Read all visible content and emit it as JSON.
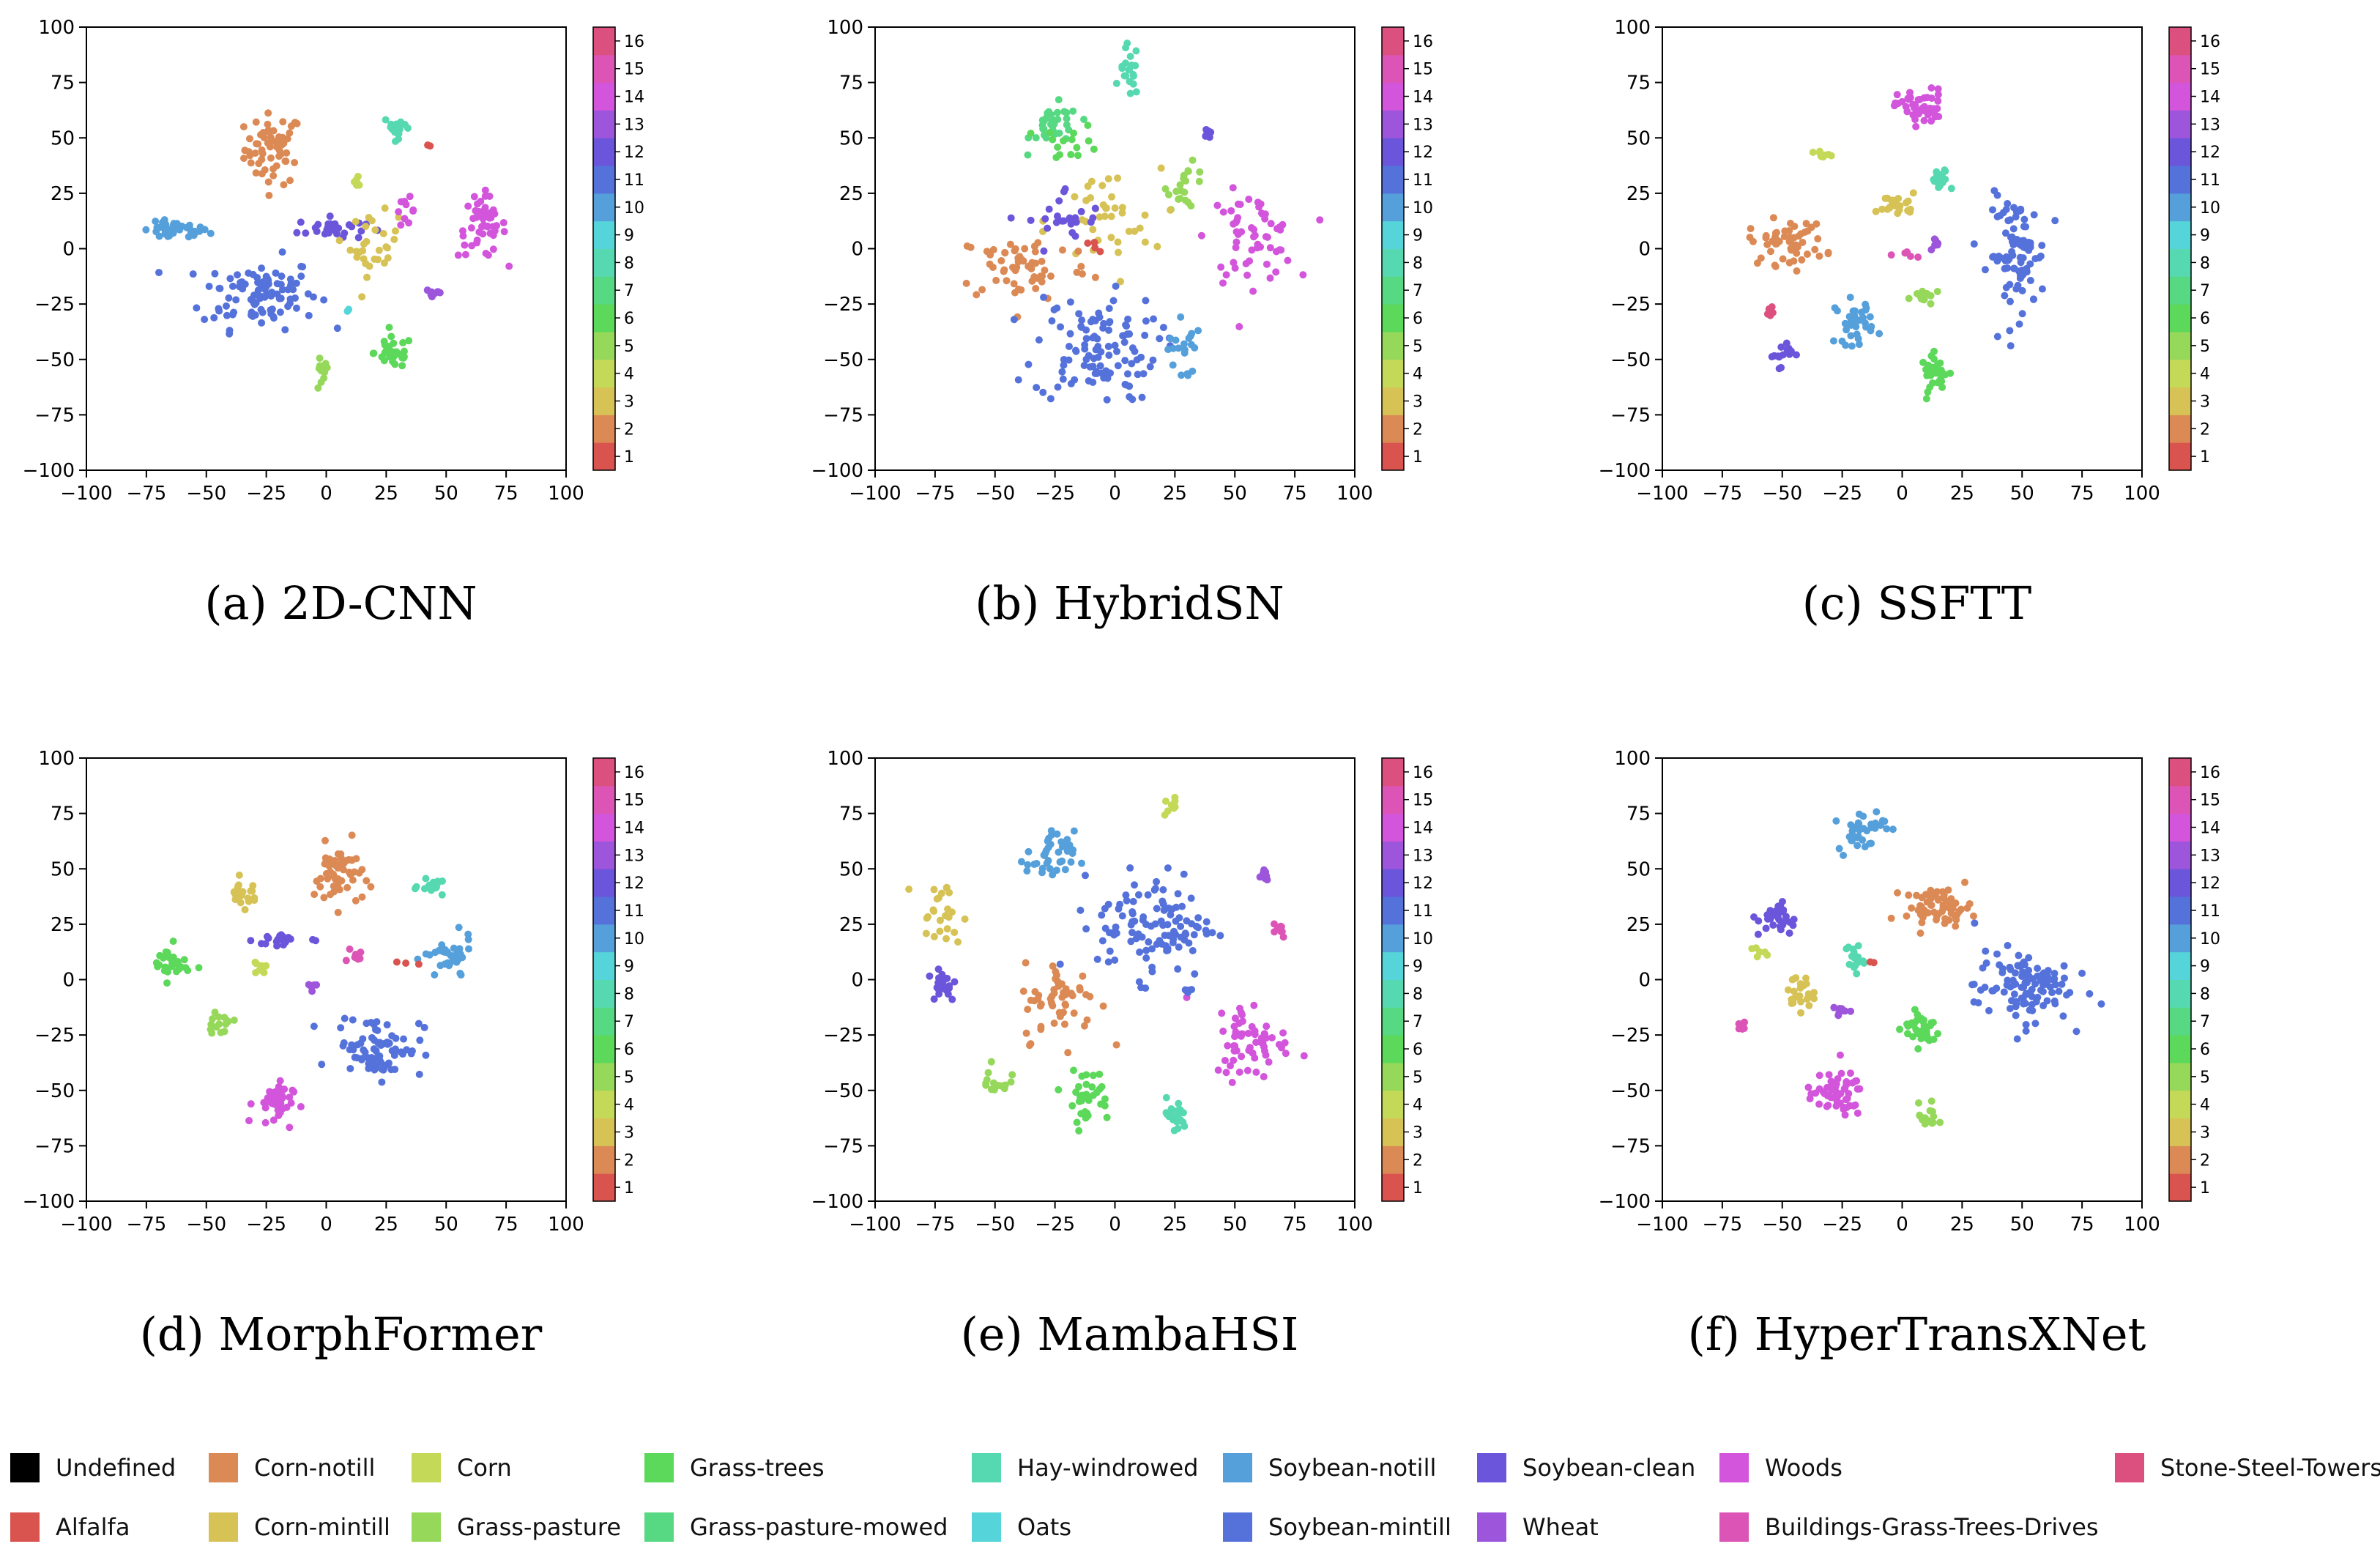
{
  "classes": [
    {
      "id": 0,
      "name": "Undefined",
      "color": "#000000"
    },
    {
      "id": 1,
      "name": "Alfalfa",
      "color": "#d9534f"
    },
    {
      "id": 2,
      "name": "Corn-notill",
      "color": "#dc8a55"
    },
    {
      "id": 3,
      "name": "Corn-mintill",
      "color": "#d6c255"
    },
    {
      "id": 4,
      "name": "Corn",
      "color": "#c4d957"
    },
    {
      "id": 5,
      "name": "Grass-pasture",
      "color": "#96d85a"
    },
    {
      "id": 6,
      "name": "Grass-trees",
      "color": "#5cd85a"
    },
    {
      "id": 7,
      "name": "Grass-pasture-mowed",
      "color": "#57d883"
    },
    {
      "id": 8,
      "name": "Hay-windrowed",
      "color": "#56d9b0"
    },
    {
      "id": 9,
      "name": "Oats",
      "color": "#55d5d9"
    },
    {
      "id": 10,
      "name": "Soybean-notill",
      "color": "#55a0db"
    },
    {
      "id": 11,
      "name": "Soybean-mintill",
      "color": "#5572db"
    },
    {
      "id": 12,
      "name": "Soybean-clean",
      "color": "#6b55db"
    },
    {
      "id": 13,
      "name": "Wheat",
      "color": "#9c55db"
    },
    {
      "id": 14,
      "name": "Woods",
      "color": "#d255db"
    },
    {
      "id": 15,
      "name": "Buildings-Grass-Trees-Drives",
      "color": "#dc55b6"
    },
    {
      "id": 16,
      "name": "Stone-Steel-Towers",
      "color": "#dc5080"
    }
  ],
  "colorbar": {
    "ticks": [
      "1",
      "2",
      "3",
      "4",
      "5",
      "6",
      "7",
      "8",
      "9",
      "10",
      "11",
      "12",
      "13",
      "14",
      "15",
      "16"
    ],
    "colors": [
      "#d9534f",
      "#dc8a55",
      "#d6c255",
      "#c4d957",
      "#96d85a",
      "#5cd85a",
      "#57d883",
      "#56d9b0",
      "#55d5d9",
      "#55a0db",
      "#5572db",
      "#6b55db",
      "#9c55db",
      "#d255db",
      "#dc55b6",
      "#dc5080"
    ]
  },
  "axes": {
    "x_ticks": [
      "−100",
      "−75",
      "−50",
      "−25",
      "0",
      "25",
      "50",
      "75",
      "100"
    ],
    "y_ticks": [
      "100",
      "75",
      "50",
      "25",
      "0",
      "−25",
      "−50",
      "−75",
      "−100"
    ],
    "xlim": [
      -100,
      100
    ],
    "ylim": [
      -100,
      100
    ]
  },
  "chart_data": [
    {
      "type": "scatter",
      "title": "(a)  2D-CNN",
      "xlim": [
        -100,
        100
      ],
      "ylim": [
        -100,
        100
      ],
      "clusters": [
        {
          "class": 2,
          "x": -22,
          "y": 45,
          "sx": 6,
          "sy": 8,
          "n": 60
        },
        {
          "class": 10,
          "x": -63,
          "y": 8,
          "sx": 7,
          "sy": 2,
          "n": 40
        },
        {
          "class": 11,
          "x": -28,
          "y": -20,
          "sx": 12,
          "sy": 8,
          "n": 100
        },
        {
          "class": 12,
          "x": 2,
          "y": 9,
          "sx": 7,
          "sy": 2.5,
          "n": 30
        },
        {
          "class": 4,
          "x": 13,
          "y": 30,
          "sx": 1.5,
          "sy": 1.5,
          "n": 6
        },
        {
          "class": 3,
          "x": 20,
          "y": 2,
          "sx": 5,
          "sy": 7,
          "n": 30
        },
        {
          "class": 8,
          "x": 30,
          "y": 55,
          "sx": 3,
          "sy": 2.5,
          "n": 20
        },
        {
          "class": 14,
          "x": 33,
          "y": 17,
          "sx": 2,
          "sy": 3,
          "n": 10
        },
        {
          "class": 14,
          "x": 65,
          "y": 10,
          "sx": 5,
          "sy": 7,
          "n": 50
        },
        {
          "class": 13,
          "x": 45,
          "y": -20,
          "sx": 2,
          "sy": 1.5,
          "n": 8
        },
        {
          "class": 6,
          "x": 28,
          "y": -47,
          "sx": 4,
          "sy": 3.5,
          "n": 35
        },
        {
          "class": 5,
          "x": -2,
          "y": -57,
          "sx": 1.5,
          "sy": 4,
          "n": 12
        },
        {
          "class": 9,
          "x": 9,
          "y": -28,
          "sx": 0.5,
          "sy": 0.5,
          "n": 2
        },
        {
          "class": 1,
          "x": 43,
          "y": 46,
          "sx": 0.5,
          "sy": 0.5,
          "n": 2
        }
      ]
    },
    {
      "type": "scatter",
      "title": "(b)  HybridSN",
      "xlim": [
        -100,
        100
      ],
      "ylim": [
        -100,
        100
      ],
      "clusters": [
        {
          "class": 8,
          "x": 6,
          "y": 80,
          "sx": 2,
          "sy": 6,
          "n": 20
        },
        {
          "class": 7,
          "x": -25,
          "y": 55,
          "sx": 5,
          "sy": 5,
          "n": 35
        },
        {
          "class": 6,
          "x": -18,
          "y": 48,
          "sx": 6,
          "sy": 4,
          "n": 15
        },
        {
          "class": 12,
          "x": 38,
          "y": 53,
          "sx": 1.5,
          "sy": 1.5,
          "n": 6
        },
        {
          "class": 5,
          "x": 30,
          "y": 28,
          "sx": 4,
          "sy": 5,
          "n": 20
        },
        {
          "class": 14,
          "x": 57,
          "y": 5,
          "sx": 9,
          "sy": 10,
          "n": 60
        },
        {
          "class": 3,
          "x": -5,
          "y": 12,
          "sx": 12,
          "sy": 12,
          "n": 40
        },
        {
          "class": 2,
          "x": -38,
          "y": -8,
          "sx": 14,
          "sy": 8,
          "n": 60
        },
        {
          "class": 12,
          "x": -20,
          "y": 12,
          "sx": 8,
          "sy": 8,
          "n": 25
        },
        {
          "class": 11,
          "x": -8,
          "y": -45,
          "sx": 13,
          "sy": 12,
          "n": 110
        },
        {
          "class": 10,
          "x": 28,
          "y": -45,
          "sx": 3,
          "sy": 8,
          "n": 20
        },
        {
          "class": 1,
          "x": -10,
          "y": 0,
          "sx": 2,
          "sy": 2,
          "n": 4
        }
      ]
    },
    {
      "type": "scatter",
      "title": "(c)  SSFTT",
      "xlim": [
        -100,
        100
      ],
      "ylim": [
        -100,
        100
      ],
      "clusters": [
        {
          "class": 14,
          "x": 8,
          "y": 64,
          "sx": 5,
          "sy": 4,
          "n": 50
        },
        {
          "class": 4,
          "x": -33,
          "y": 42,
          "sx": 2,
          "sy": 1,
          "n": 8
        },
        {
          "class": 8,
          "x": 16,
          "y": 30,
          "sx": 2,
          "sy": 3,
          "n": 20
        },
        {
          "class": 3,
          "x": -2,
          "y": 20,
          "sx": 4,
          "sy": 2.5,
          "n": 25
        },
        {
          "class": 2,
          "x": -48,
          "y": 3,
          "sx": 8,
          "sy": 5,
          "n": 55
        },
        {
          "class": 11,
          "x": 48,
          "y": -3,
          "sx": 6,
          "sy": 13,
          "n": 90
        },
        {
          "class": 13,
          "x": 15,
          "y": 3,
          "sx": 1,
          "sy": 2,
          "n": 6
        },
        {
          "class": 15,
          "x": 3,
          "y": -3,
          "sx": 2,
          "sy": 1,
          "n": 6
        },
        {
          "class": 10,
          "x": -20,
          "y": -33,
          "sx": 4,
          "sy": 5,
          "n": 35
        },
        {
          "class": 6,
          "x": 14,
          "y": -56,
          "sx": 3,
          "sy": 4,
          "n": 30
        },
        {
          "class": 5,
          "x": 10,
          "y": -22,
          "sx": 3,
          "sy": 2,
          "n": 15
        },
        {
          "class": 12,
          "x": -51,
          "y": -47,
          "sx": 2.5,
          "sy": 3,
          "n": 15
        },
        {
          "class": 16,
          "x": -55,
          "y": -28,
          "sx": 1,
          "sy": 1.5,
          "n": 5
        }
      ]
    },
    {
      "type": "scatter",
      "title": "(d)  MorphFormer",
      "xlim": [
        -100,
        100
      ],
      "ylim": [
        -100,
        100
      ],
      "clusters": [
        {
          "class": 2,
          "x": 5,
          "y": 47,
          "sx": 5,
          "sy": 7,
          "n": 55
        },
        {
          "class": 3,
          "x": -35,
          "y": 39,
          "sx": 3,
          "sy": 3,
          "n": 25
        },
        {
          "class": 8,
          "x": 45,
          "y": 42,
          "sx": 3,
          "sy": 1.5,
          "n": 18
        },
        {
          "class": 10,
          "x": 51,
          "y": 9,
          "sx": 5,
          "sy": 5,
          "n": 35
        },
        {
          "class": 6,
          "x": -65,
          "y": 7,
          "sx": 4,
          "sy": 4,
          "n": 30
        },
        {
          "class": 12,
          "x": -18,
          "y": 18,
          "sx": 6,
          "sy": 2,
          "n": 20
        },
        {
          "class": 4,
          "x": -28,
          "y": 5,
          "sx": 1.5,
          "sy": 1.5,
          "n": 8
        },
        {
          "class": 15,
          "x": 12,
          "y": 10,
          "sx": 1.5,
          "sy": 1.5,
          "n": 8
        },
        {
          "class": 13,
          "x": -6,
          "y": -3,
          "sx": 1,
          "sy": 1,
          "n": 5
        },
        {
          "class": 5,
          "x": -45,
          "y": -20,
          "sx": 3,
          "sy": 2,
          "n": 15
        },
        {
          "class": 11,
          "x": 22,
          "y": -30,
          "sx": 9,
          "sy": 7,
          "n": 80
        },
        {
          "class": 14,
          "x": -22,
          "y": -56,
          "sx": 4,
          "sy": 5,
          "n": 40
        },
        {
          "class": 1,
          "x": 33,
          "y": 8,
          "sx": 2,
          "sy": 1,
          "n": 3
        }
      ]
    },
    {
      "type": "scatter",
      "title": "(e)  MambaHSI",
      "xlim": [
        -100,
        100
      ],
      "ylim": [
        -100,
        100
      ],
      "clusters": [
        {
          "class": 4,
          "x": 23,
          "y": 78,
          "sx": 1.5,
          "sy": 2,
          "n": 8
        },
        {
          "class": 10,
          "x": -27,
          "y": 55,
          "sx": 5,
          "sy": 6,
          "n": 40
        },
        {
          "class": 3,
          "x": -73,
          "y": 28,
          "sx": 5,
          "sy": 8,
          "n": 25
        },
        {
          "class": 11,
          "x": 17,
          "y": 25,
          "sx": 12,
          "sy": 12,
          "n": 110
        },
        {
          "class": 13,
          "x": 62,
          "y": 47,
          "sx": 1.5,
          "sy": 2,
          "n": 8
        },
        {
          "class": 15,
          "x": 68,
          "y": 23,
          "sx": 2,
          "sy": 2,
          "n": 10
        },
        {
          "class": 12,
          "x": -72,
          "y": -2,
          "sx": 3,
          "sy": 4,
          "n": 20
        },
        {
          "class": 2,
          "x": -22,
          "y": -10,
          "sx": 8,
          "sy": 9,
          "n": 55
        },
        {
          "class": 14,
          "x": 57,
          "y": -27,
          "sx": 8,
          "sy": 9,
          "n": 60
        },
        {
          "class": 5,
          "x": -50,
          "y": -47,
          "sx": 3,
          "sy": 4,
          "n": 15
        },
        {
          "class": 6,
          "x": -12,
          "y": -52,
          "sx": 5,
          "sy": 6,
          "n": 35
        },
        {
          "class": 8,
          "x": 25,
          "y": -62,
          "sx": 2.5,
          "sy": 4,
          "n": 20
        },
        {
          "class": 11,
          "x": 30,
          "y": -5,
          "sx": 1.5,
          "sy": 1,
          "n": 5
        }
      ]
    },
    {
      "type": "scatter",
      "title": "(f)  HyperTransXNet",
      "xlim": [
        -100,
        100
      ],
      "ylim": [
        -100,
        100
      ],
      "clusters": [
        {
          "class": 10,
          "x": -17,
          "y": 68,
          "sx": 5,
          "sy": 5,
          "n": 35
        },
        {
          "class": 2,
          "x": 15,
          "y": 33,
          "sx": 7,
          "sy": 4,
          "n": 60
        },
        {
          "class": 12,
          "x": -52,
          "y": 27,
          "sx": 4,
          "sy": 4,
          "n": 30
        },
        {
          "class": 8,
          "x": -20,
          "y": 10,
          "sx": 2,
          "sy": 4,
          "n": 18
        },
        {
          "class": 4,
          "x": -60,
          "y": 12,
          "sx": 1.5,
          "sy": 1.5,
          "n": 6
        },
        {
          "class": 3,
          "x": -43,
          "y": -6,
          "sx": 3,
          "sy": 4,
          "n": 25
        },
        {
          "class": 11,
          "x": 50,
          "y": -3,
          "sx": 10,
          "sy": 8,
          "n": 110
        },
        {
          "class": 6,
          "x": 8,
          "y": -22,
          "sx": 4,
          "sy": 4,
          "n": 35
        },
        {
          "class": 13,
          "x": -25,
          "y": -14,
          "sx": 2,
          "sy": 1,
          "n": 8
        },
        {
          "class": 15,
          "x": -67,
          "y": -21,
          "sx": 1.5,
          "sy": 1.5,
          "n": 8
        },
        {
          "class": 14,
          "x": -28,
          "y": -52,
          "sx": 6,
          "sy": 5,
          "n": 55
        },
        {
          "class": 5,
          "x": 11,
          "y": -62,
          "sx": 2,
          "sy": 3,
          "n": 15
        },
        {
          "class": 1,
          "x": -13,
          "y": 8,
          "sx": 1,
          "sy": 1,
          "n": 2
        }
      ]
    }
  ]
}
